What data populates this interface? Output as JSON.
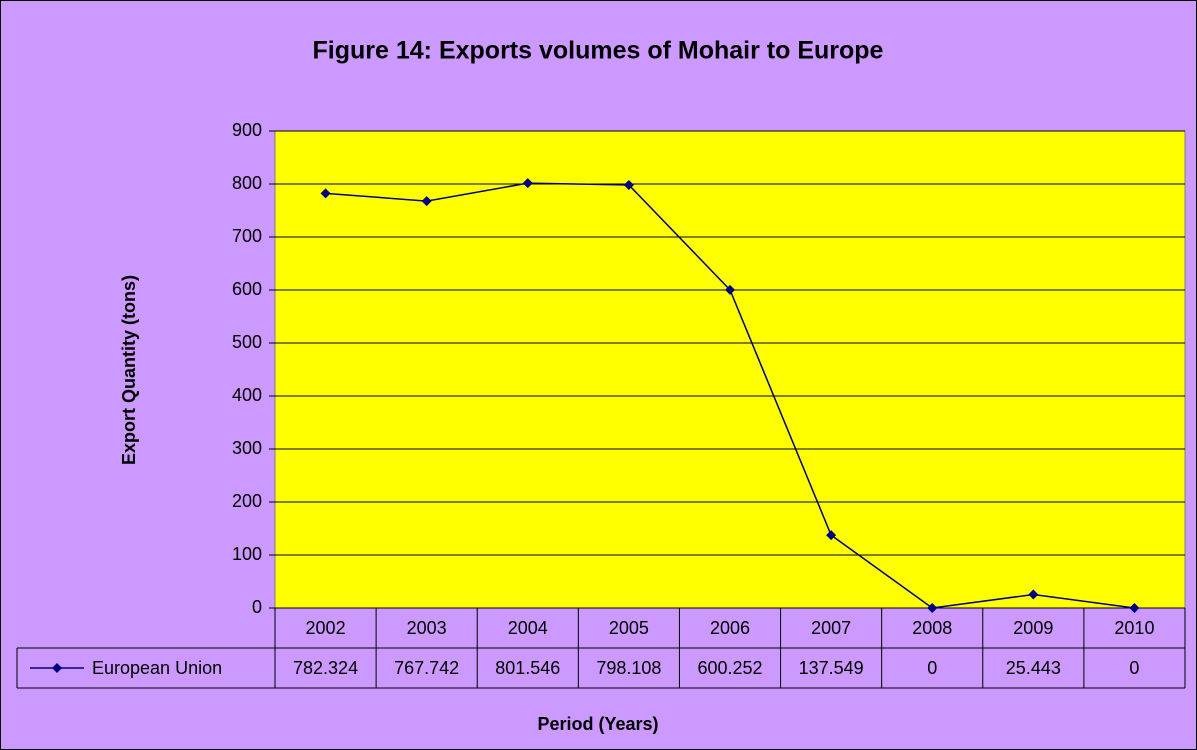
{
  "chart_data": {
    "type": "line",
    "title": "Figure 14: Exports volumes of Mohair to Europe",
    "y_label": "Export Quantity (tons)",
    "x_label": "Period (Years)",
    "categories": [
      "2002",
      "2003",
      "2004",
      "2005",
      "2006",
      "2007",
      "2008",
      "2009",
      "2010"
    ],
    "series": [
      {
        "name": "European Union",
        "color": "#000080",
        "values": [
          782.324,
          767.742,
          801.546,
          798.108,
          600.252,
          137.549,
          0,
          25.443,
          0
        ]
      }
    ],
    "ylim": [
      0,
      900
    ],
    "yticks": [
      0,
      100,
      200,
      300,
      400,
      500,
      600,
      700,
      800,
      900
    ],
    "grid": true,
    "background": "#cc99ff",
    "plot_background": "#ffff00"
  }
}
